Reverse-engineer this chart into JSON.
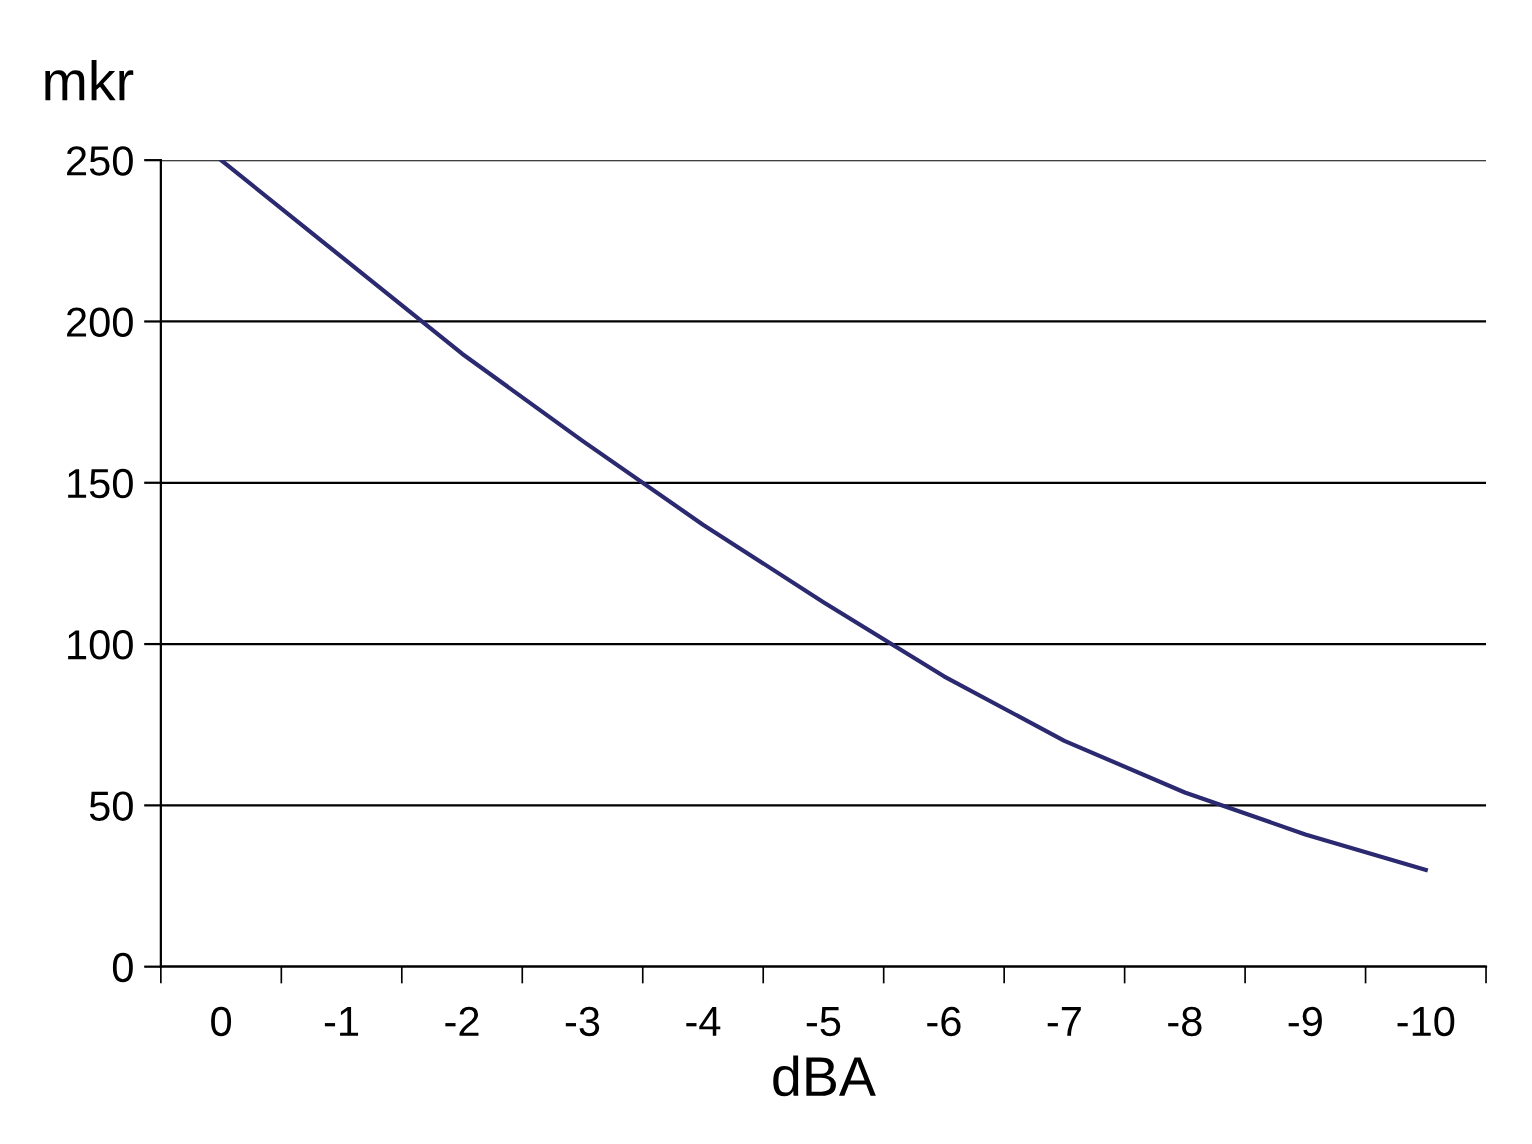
{
  "chart_data": {
    "type": "line",
    "xlabel": "dBA",
    "ylabel": "mkr",
    "categories": [
      "0",
      "-1",
      "-2",
      "-3",
      "-4",
      "-5",
      "-6",
      "-7",
      "-8",
      "-9",
      "-10"
    ],
    "series": [
      {
        "color": "#2b2970",
        "values": [
          250,
          220,
          190,
          163,
          137,
          113,
          90,
          70,
          54,
          41,
          30
        ]
      }
    ],
    "ylim": [
      0,
      250
    ],
    "yticks": [
      0,
      50,
      100,
      150,
      200,
      250
    ],
    "grid": "y",
    "legend": false,
    "marker": "none",
    "line_style": "solid"
  }
}
